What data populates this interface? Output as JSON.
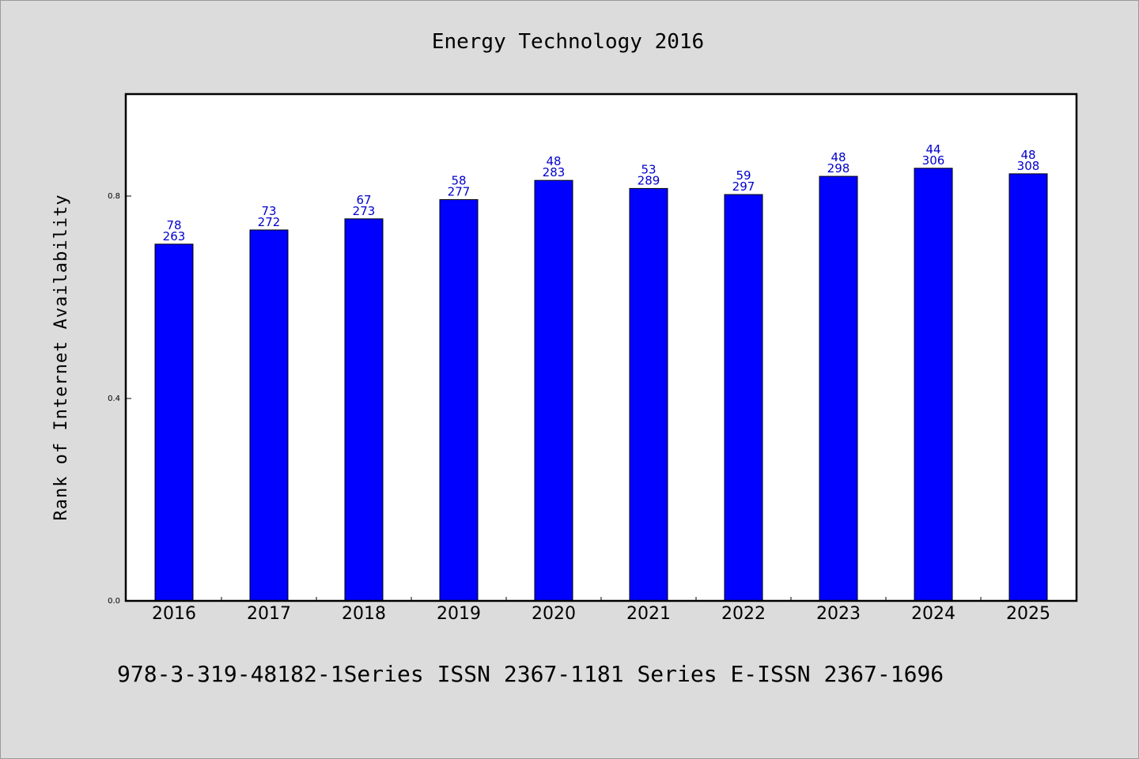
{
  "chart_data": {
    "type": "bar",
    "title": "Energy Technology 2016",
    "ylabel": "Rank of Internet Availability",
    "xlabel": "",
    "categories": [
      "2016",
      "2017",
      "2018",
      "2019",
      "2020",
      "2021",
      "2022",
      "2023",
      "2024",
      "2025"
    ],
    "series": [
      {
        "values": [
          0.705,
          0.733,
          0.755,
          0.793,
          0.831,
          0.815,
          0.803,
          0.839,
          0.855,
          0.844
        ],
        "color": "#0000ff"
      }
    ],
    "data_labels_top": [
      "78",
      "73",
      "67",
      "58",
      "48",
      "53",
      "59",
      "48",
      "44",
      "48"
    ],
    "data_labels_bottom": [
      "263",
      "272",
      "273",
      "277",
      "283",
      "289",
      "297",
      "298",
      "306",
      "308"
    ],
    "yticks": [
      0.0,
      0.4,
      0.8
    ],
    "ytick_labels": [
      "0.0",
      "0.4",
      "0.8"
    ],
    "ylim": [
      0.0,
      1.0
    ],
    "grid": false,
    "legend": "none"
  },
  "footer": {
    "text": "978-3-319-48182-1Series ISSN 2367-1181 Series E-ISSN 2367-1696"
  }
}
